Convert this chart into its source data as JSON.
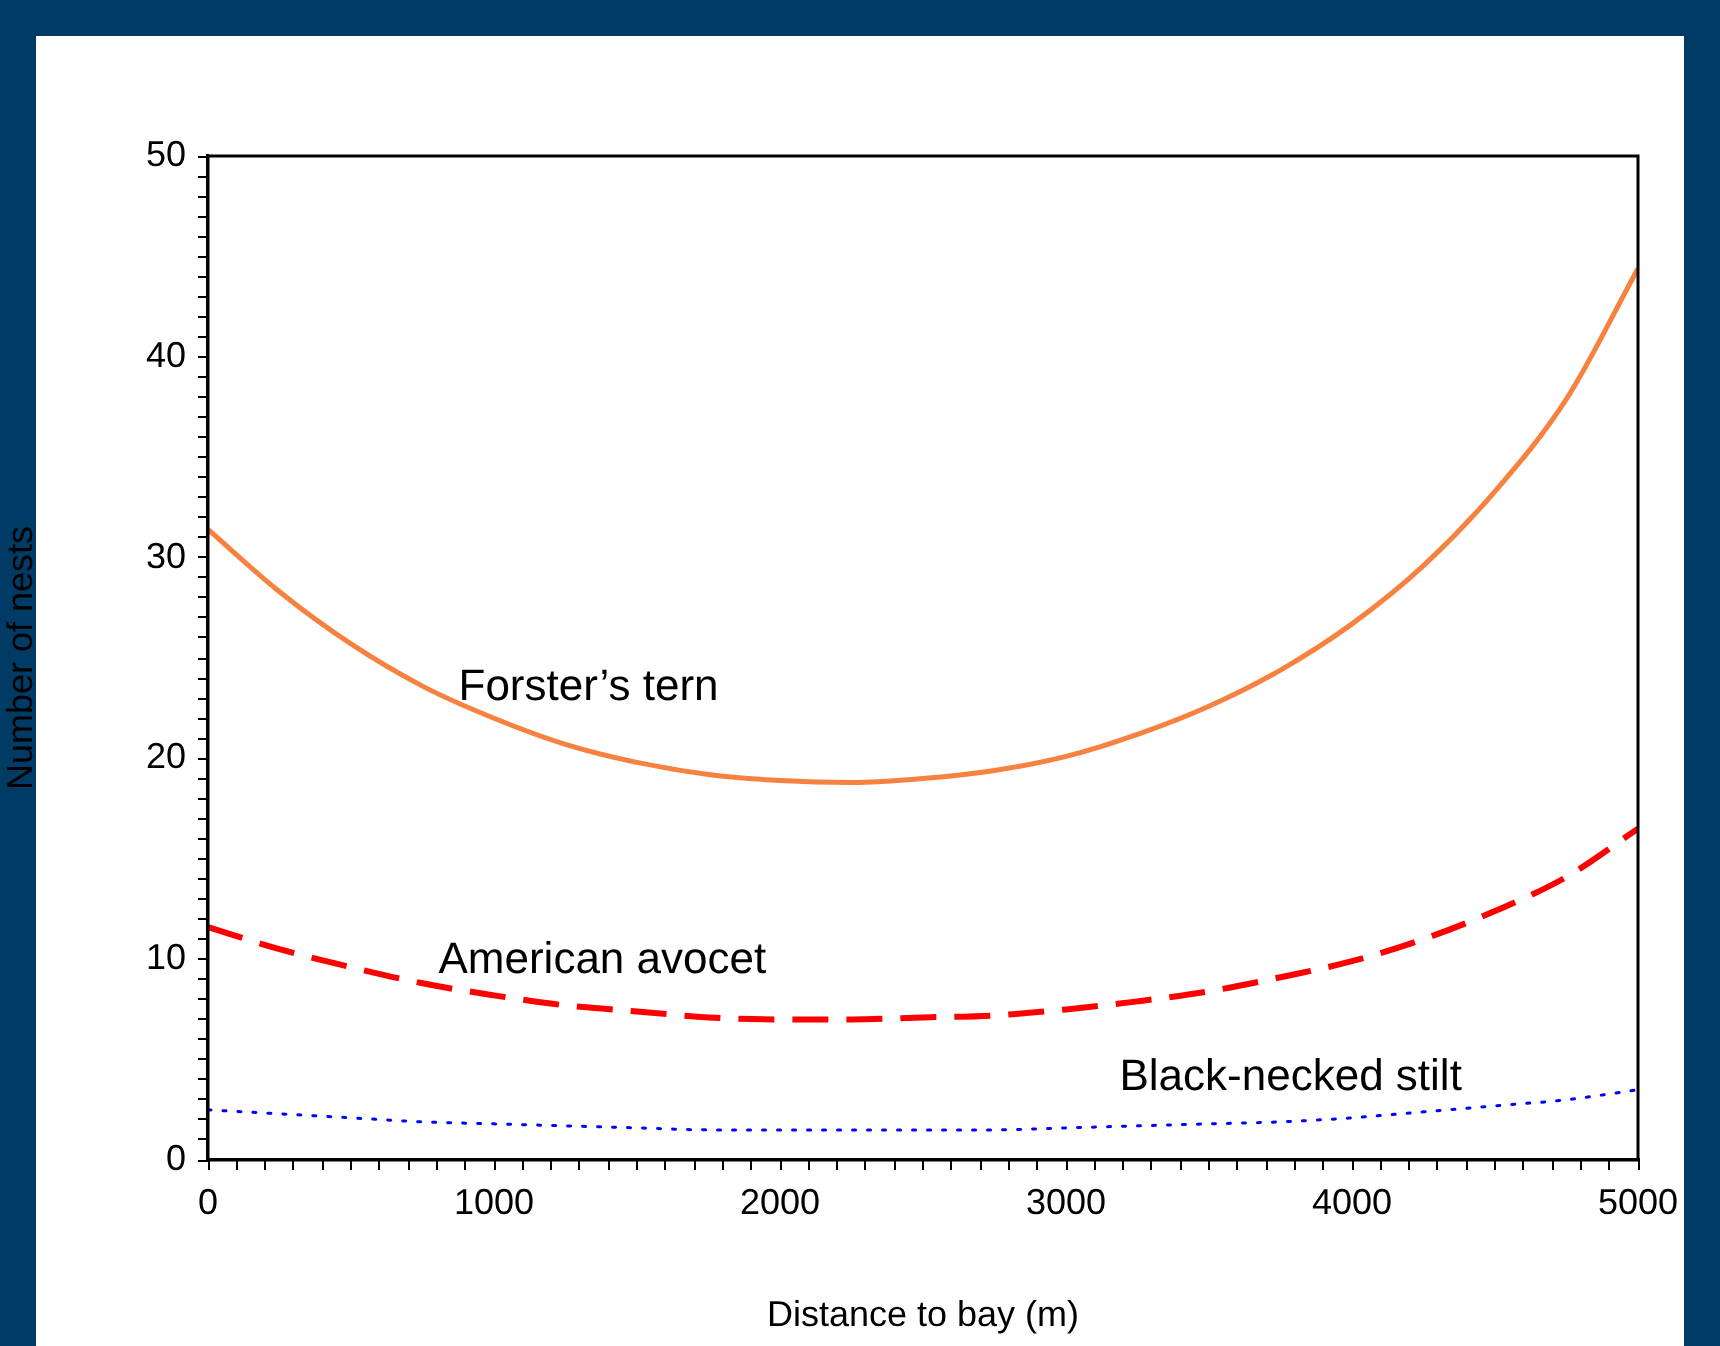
{
  "chart_data": {
    "type": "line",
    "xlabel": "Distance to bay (m)",
    "ylabel": "Number of nests",
    "x": [
      0,
      250,
      500,
      750,
      1000,
      1250,
      1500,
      1750,
      2000,
      2250,
      2500,
      2750,
      3000,
      3250,
      3500,
      3750,
      4000,
      4250,
      4500,
      4750,
      5000
    ],
    "series": [
      {
        "name": "Forster’s tern",
        "color": "#f7813f",
        "line_style": "solid",
        "values": [
          31.4,
          28.3,
          25.7,
          23.6,
          22.0,
          20.7,
          19.8,
          19.2,
          18.9,
          18.8,
          19.0,
          19.4,
          20.1,
          21.2,
          22.6,
          24.4,
          26.7,
          29.6,
          33.3,
          37.9,
          44.4
        ]
      },
      {
        "name": "American avocet",
        "color": "#ff0000",
        "line_style": "dashed",
        "values": [
          11.6,
          10.5,
          9.6,
          8.8,
          8.2,
          7.7,
          7.4,
          7.1,
          7.0,
          7.0,
          7.1,
          7.2,
          7.5,
          7.9,
          8.4,
          9.1,
          9.9,
          11.0,
          12.4,
          14.1,
          16.5
        ]
      },
      {
        "name": "Black-necked stilt",
        "color": "#0000ff",
        "line_style": "dotted",
        "values": [
          2.5,
          2.3,
          2.1,
          1.9,
          1.8,
          1.7,
          1.6,
          1.5,
          1.5,
          1.5,
          1.5,
          1.5,
          1.6,
          1.7,
          1.8,
          1.9,
          2.1,
          2.4,
          2.7,
          3.0,
          3.5
        ]
      }
    ],
    "xlim": [
      0,
      5000
    ],
    "xticks": [
      0,
      {
        "value": 100,
        "label": null
      },
      {
        "value": 200,
        "label": null
      },
      {
        "value": 300,
        "label": null
      },
      {
        "value": 400,
        "label": null
      },
      {
        "value": 500,
        "label": null
      },
      {
        "value": 600,
        "label": null
      },
      {
        "value": 700,
        "label": null
      },
      {
        "value": 800,
        "label": null
      },
      {
        "value": 900,
        "label": null
      },
      1000,
      {
        "value": 1100,
        "label": null
      },
      {
        "value": 1200,
        "label": null
      },
      {
        "value": 1300,
        "label": null
      },
      {
        "value": 1400,
        "label": null
      },
      {
        "value": 1500,
        "label": null
      },
      {
        "value": 1600,
        "label": null
      },
      {
        "value": 1700,
        "label": null
      },
      {
        "value": 1800,
        "label": null
      },
      {
        "value": 1900,
        "label": null
      },
      2000,
      {
        "value": 2100,
        "label": null
      },
      {
        "value": 2200,
        "label": null
      },
      {
        "value": 2300,
        "label": null
      },
      {
        "value": 2400,
        "label": null
      },
      {
        "value": 2500,
        "label": null
      },
      {
        "value": 2600,
        "label": null
      },
      {
        "value": 2700,
        "label": null
      },
      {
        "value": 2800,
        "label": null
      },
      {
        "value": 2900,
        "label": null
      },
      3000,
      {
        "value": 3100,
        "label": null
      },
      {
        "value": 3200,
        "label": null
      },
      {
        "value": 3300,
        "label": null
      },
      {
        "value": 3400,
        "label": null
      },
      {
        "value": 3500,
        "label": null
      },
      {
        "value": 3600,
        "label": null
      },
      {
        "value": 3700,
        "label": null
      },
      {
        "value": 3800,
        "label": null
      },
      {
        "value": 3900,
        "label": null
      },
      4000,
      {
        "value": 4100,
        "label": null
      },
      {
        "value": 4200,
        "label": null
      },
      {
        "value": 4300,
        "label": null
      },
      {
        "value": 4400,
        "label": null
      },
      {
        "value": 4500,
        "label": null
      },
      {
        "value": 4600,
        "label": null
      },
      {
        "value": 4700,
        "label": null
      },
      {
        "value": 4800,
        "label": null
      },
      {
        "value": 4900,
        "label": null
      },
      5000
    ],
    "ylim": [
      0,
      50
    ],
    "yticks": [
      0,
      {
        "value": 1,
        "label": null
      },
      {
        "value": 2,
        "label": null
      },
      {
        "value": 3,
        "label": null
      },
      {
        "value": 4,
        "label": null
      },
      {
        "value": 5,
        "label": null
      },
      {
        "value": 6,
        "label": null
      },
      {
        "value": 7,
        "label": null
      },
      {
        "value": 8,
        "label": null
      },
      {
        "value": 9,
        "label": null
      },
      10,
      {
        "value": 11,
        "label": null
      },
      {
        "value": 12,
        "label": null
      },
      {
        "value": 13,
        "label": null
      },
      {
        "value": 14,
        "label": null
      },
      {
        "value": 15,
        "label": null
      },
      {
        "value": 16,
        "label": null
      },
      {
        "value": 17,
        "label": null
      },
      {
        "value": 18,
        "label": null
      },
      {
        "value": 19,
        "label": null
      },
      20,
      {
        "value": 21,
        "label": null
      },
      {
        "value": 22,
        "label": null
      },
      {
        "value": 23,
        "label": null
      },
      {
        "value": 24,
        "label": null
      },
      {
        "value": 25,
        "label": null
      },
      {
        "value": 26,
        "label": null
      },
      {
        "value": 27,
        "label": null
      },
      {
        "value": 28,
        "label": null
      },
      {
        "value": 29,
        "label": null
      },
      30,
      {
        "value": 31,
        "label": null
      },
      {
        "value": 32,
        "label": null
      },
      {
        "value": 33,
        "label": null
      },
      {
        "value": 34,
        "label": null
      },
      {
        "value": 35,
        "label": null
      },
      {
        "value": 36,
        "label": null
      },
      {
        "value": 37,
        "label": null
      },
      {
        "value": 38,
        "label": null
      },
      {
        "value": 39,
        "label": null
      },
      40,
      {
        "value": 41,
        "label": null
      },
      {
        "value": 42,
        "label": null
      },
      {
        "value": 43,
        "label": null
      },
      {
        "value": 44,
        "label": null
      },
      {
        "value": 45,
        "label": null
      },
      {
        "value": 46,
        "label": null
      },
      {
        "value": 47,
        "label": null
      },
      {
        "value": 48,
        "label": null
      },
      {
        "value": 49,
        "label": null
      },
      50
    ],
    "grid": false,
    "legend": false,
    "marker": "none"
  }
}
